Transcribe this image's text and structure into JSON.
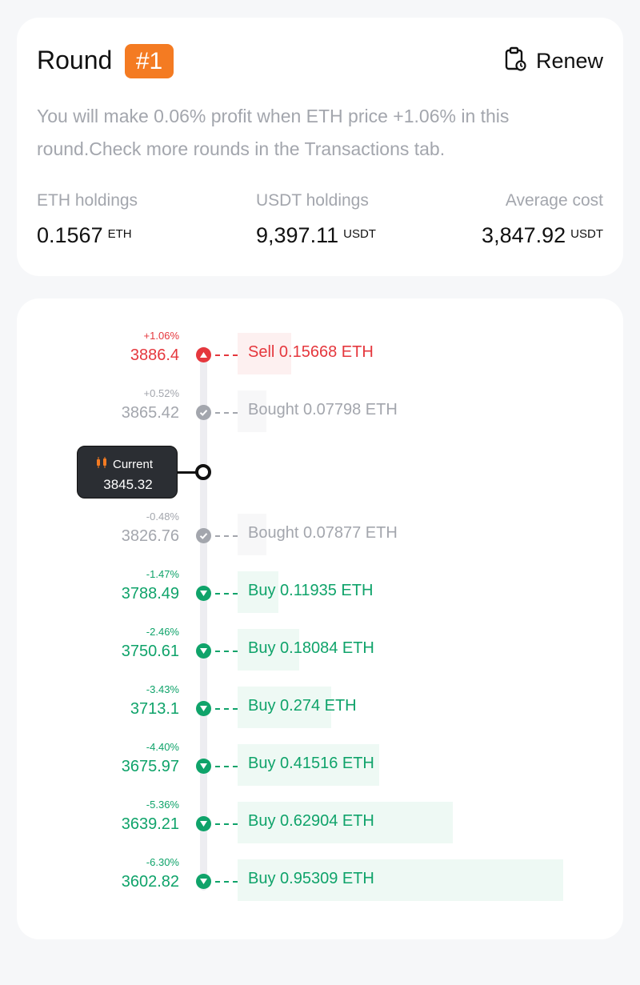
{
  "round": {
    "title": "Round",
    "badge": "#1",
    "accent": "#f47b22",
    "renew_label": "Renew",
    "description": "You will make 0.06% profit when ETH price +1.06% in this round.Check more rounds in the Transactions tab.",
    "stats": {
      "eth": {
        "label": "ETH holdings",
        "value": "0.1567",
        "unit": "ETH"
      },
      "usdt": {
        "label": "USDT holdings",
        "value": "9,397.11",
        "unit": "USDT"
      },
      "avg": {
        "label": "Average cost",
        "value": "3,847.92",
        "unit": "USDT"
      }
    }
  },
  "current": {
    "label": "Current",
    "price": "3845.32",
    "icon": "candlestick-icon"
  },
  "colors": {
    "sell": "#e5373d",
    "bought": "#a3a6ad",
    "buy": "#0fa36a",
    "buy_bar": "#eef9f4",
    "sell_bar": "#fdf0f0",
    "bought_bar": "#f7f7f8"
  },
  "levels": [
    {
      "type": "sell",
      "pct": "+1.06%",
      "price": "3886.4",
      "label": "Sell 0.15668 ETH",
      "amount": 0.15668
    },
    {
      "type": "bought",
      "pct": "+0.52%",
      "price": "3865.42",
      "label": "Bought 0.07798 ETH",
      "amount": 0.07798
    },
    {
      "type": "bought",
      "pct": "-0.48%",
      "price": "3826.76",
      "label": "Bought 0.07877 ETH",
      "amount": 0.07877
    },
    {
      "type": "buy",
      "pct": "-1.47%",
      "price": "3788.49",
      "label": "Buy 0.11935 ETH",
      "amount": 0.11935
    },
    {
      "type": "buy",
      "pct": "-2.46%",
      "price": "3750.61",
      "label": "Buy 0.18084 ETH",
      "amount": 0.18084
    },
    {
      "type": "buy",
      "pct": "-3.43%",
      "price": "3713.1",
      "label": "Buy 0.274 ETH",
      "amount": 0.274
    },
    {
      "type": "buy",
      "pct": "-4.40%",
      "price": "3675.97",
      "label": "Buy 0.41516 ETH",
      "amount": 0.41516
    },
    {
      "type": "buy",
      "pct": "-5.36%",
      "price": "3639.21",
      "label": "Buy 0.62904 ETH",
      "amount": 0.62904
    },
    {
      "type": "buy",
      "pct": "-6.30%",
      "price": "3602.82",
      "label": "Buy 0.95309 ETH",
      "amount": 0.95309
    }
  ]
}
